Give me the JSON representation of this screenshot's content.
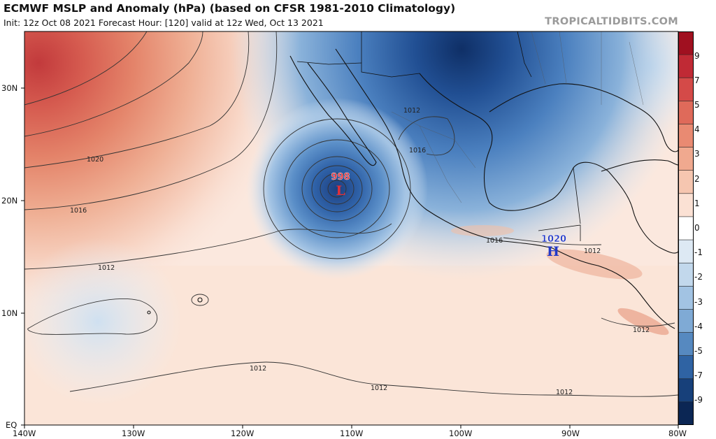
{
  "header": {
    "title": "ECMWF MSLP and Anomaly (hPa) (based on CFSR 1981-2010 Climatology)",
    "subtitle": "Init: 12z Oct 08 2021   Forecast Hour: [120]   valid at 12z Wed, Oct 13 2021",
    "credit": "TROPICALTIDBITS.COM"
  },
  "axes": {
    "lat_labels": [
      "30N",
      "20N",
      "10N",
      "EQ"
    ],
    "lon_labels": [
      "140W",
      "130W",
      "120W",
      "110W",
      "100W",
      "90W",
      "80W"
    ]
  },
  "colorbar": {
    "labels": [
      "9",
      "7",
      "5",
      "4",
      "3",
      "2",
      "1",
      "0",
      "-1",
      "-2",
      "-3",
      "-4",
      "-5",
      "-7",
      "-9"
    ],
    "colors": [
      "#a01020",
      "#c02a35",
      "#d44a48",
      "#df6a5a",
      "#e98a72",
      "#f0a98f",
      "#f6c6b0",
      "#fbe1d4",
      "#ffffff",
      "#dde9f4",
      "#c2d8ec",
      "#a2c3e3",
      "#7faad5",
      "#5689c0",
      "#2f63a3",
      "#17407a",
      "#0b2654"
    ]
  },
  "isobar_labels": [
    "1020",
    "1016",
    "1012",
    "1016",
    "1012",
    "1012",
    "1012",
    "1012",
    "1016",
    "1012",
    "1012"
  ],
  "systems": [
    {
      "type": "L",
      "pressure": "998",
      "color": "#e0303a"
    },
    {
      "type": "H",
      "pressure": "1020",
      "color": "#2238c8"
    }
  ]
}
